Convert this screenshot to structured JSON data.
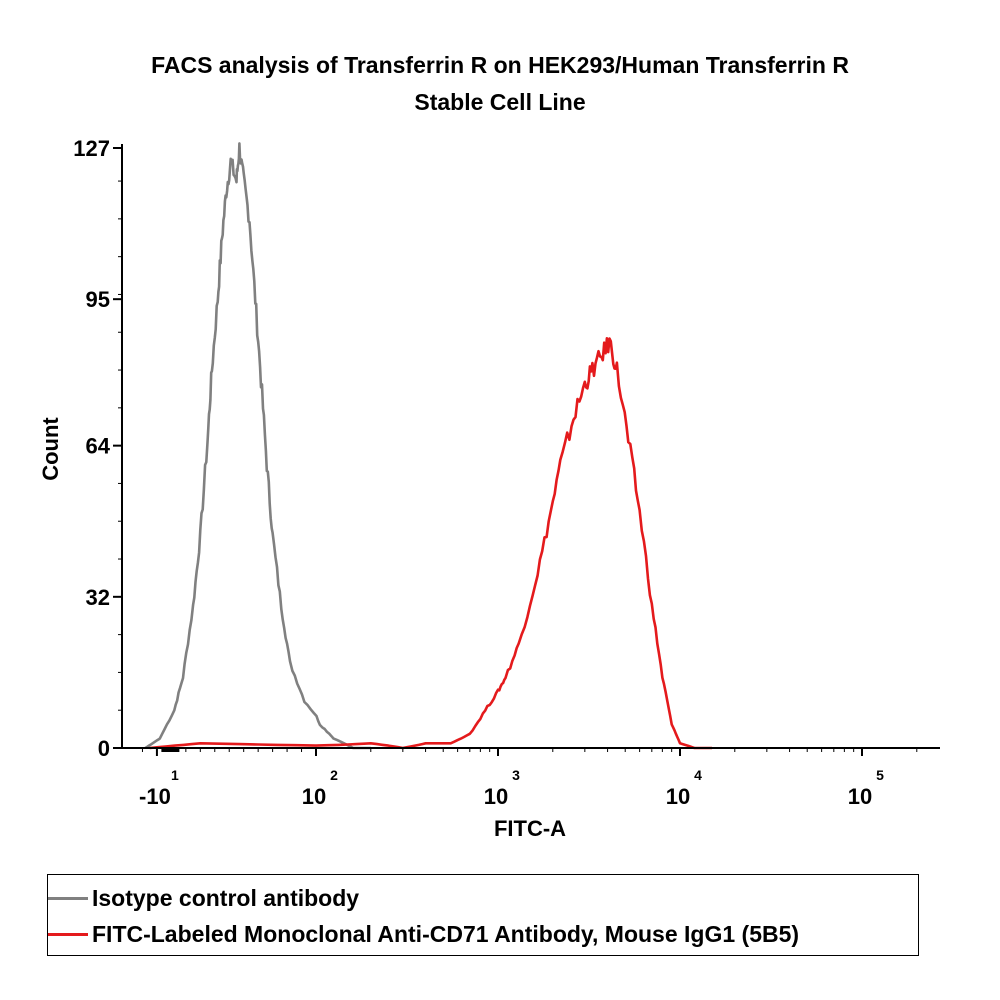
{
  "chart_data": {
    "type": "line",
    "title": "FACS analysis of Transferrin R on HEK293/Human Transferrin R",
    "subtitle": "Stable Cell Line",
    "xlabel": "FITC-A",
    "ylabel": "Count",
    "ylim": [
      0,
      127
    ],
    "xscale": "biexponential",
    "xlim": [
      -30,
      300000
    ],
    "y_ticks": [
      0,
      32,
      64,
      95,
      127
    ],
    "x_ticks": [
      {
        "value": -10,
        "base": "-10",
        "exp": "1"
      },
      {
        "value": 100,
        "base": "10",
        "exp": "2"
      },
      {
        "value": 1000,
        "base": "10",
        "exp": "3"
      },
      {
        "value": 10000,
        "base": "10",
        "exp": "4"
      },
      {
        "value": 100000,
        "base": "10",
        "exp": "5"
      }
    ],
    "grid": false,
    "legend_position": "bottom",
    "series": [
      {
        "name": "Isotype control antibody",
        "color": "#808080",
        "points": [
          [
            -18,
            0
          ],
          [
            -8,
            2
          ],
          [
            2,
            8
          ],
          [
            8,
            15
          ],
          [
            15,
            30
          ],
          [
            20,
            45
          ],
          [
            25,
            65
          ],
          [
            28,
            80
          ],
          [
            32,
            95
          ],
          [
            35,
            108
          ],
          [
            38,
            118
          ],
          [
            41,
            124
          ],
          [
            45,
            120
          ],
          [
            47,
            127
          ],
          [
            50,
            120
          ],
          [
            54,
            112
          ],
          [
            58,
            95
          ],
          [
            62,
            78
          ],
          [
            66,
            60
          ],
          [
            70,
            45
          ],
          [
            76,
            30
          ],
          [
            82,
            18
          ],
          [
            92,
            10
          ],
          [
            105,
            5
          ],
          [
            125,
            2
          ],
          [
            160,
            0
          ],
          [
            200,
            0
          ]
        ]
      },
      {
        "name": "FITC-Labeled Monoclonal Anti-CD71 Antibody, Mouse IgG1 (5B5)",
        "color": "#e41a1c",
        "points": [
          [
            -15,
            0
          ],
          [
            20,
            1
          ],
          [
            100,
            0.5
          ],
          [
            200,
            1
          ],
          [
            300,
            0
          ],
          [
            400,
            1
          ],
          [
            550,
            1
          ],
          [
            700,
            3
          ],
          [
            850,
            8
          ],
          [
            1000,
            12
          ],
          [
            1100,
            15
          ],
          [
            1300,
            22
          ],
          [
            1600,
            35
          ],
          [
            1900,
            48
          ],
          [
            2200,
            60
          ],
          [
            2600,
            70
          ],
          [
            3000,
            77
          ],
          [
            3300,
            80
          ],
          [
            3700,
            83
          ],
          [
            4100,
            86
          ],
          [
            4500,
            80
          ],
          [
            5200,
            65
          ],
          [
            6000,
            50
          ],
          [
            7000,
            30
          ],
          [
            8000,
            15
          ],
          [
            9000,
            5
          ],
          [
            10000,
            1
          ],
          [
            12000,
            0
          ],
          [
            15000,
            0
          ]
        ]
      }
    ]
  }
}
